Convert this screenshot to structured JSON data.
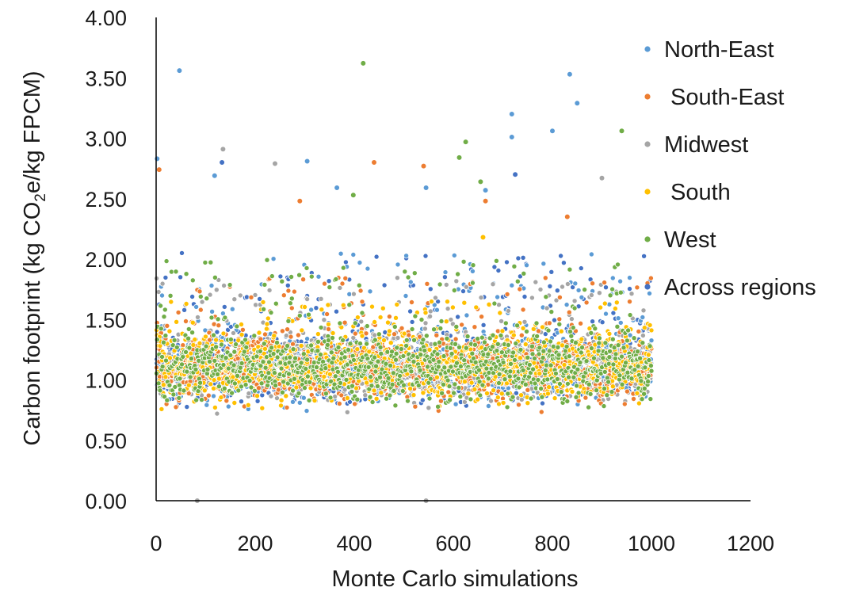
{
  "chart_data": {
    "type": "scatter",
    "xlabel": "Monte Carlo simulations",
    "ylabel_parts": [
      "Carbon footprint (kg CO",
      "2",
      "e/kg FPCM)"
    ],
    "xlim": [
      0,
      1200
    ],
    "ylim": [
      0,
      4
    ],
    "x_ticks": [
      "0",
      "200",
      "400",
      "600",
      "800",
      "1000",
      "1200"
    ],
    "y_ticks": [
      "0.00",
      "0.50",
      "1.00",
      "1.50",
      "2.00",
      "2.50",
      "3.00",
      "3.50",
      "4.00"
    ],
    "grid": false,
    "legend_position": "right",
    "n_simulations": 1000,
    "series": [
      {
        "name": "North-East",
        "color": "#5b9bd5",
        "main_range": [
          0.7,
          2.05
        ],
        "outliers": [
          [
            2,
            2.83
          ],
          [
            47,
            3.56
          ],
          [
            118,
            2.69
          ],
          [
            305,
            2.81
          ],
          [
            365,
            2.59
          ],
          [
            545,
            2.59
          ],
          [
            718,
            3.2
          ],
          [
            835,
            3.53
          ],
          [
            850,
            3.29
          ],
          [
            800,
            3.06
          ],
          [
            718,
            3.01
          ],
          [
            665,
            2.57
          ]
        ]
      },
      {
        "name": "South-East",
        "color": "#ed7d31",
        "main_range": [
          0.7,
          1.85
        ],
        "outliers": [
          [
            6,
            2.74
          ],
          [
            440,
            2.8
          ],
          [
            540,
            2.77
          ],
          [
            665,
            2.48
          ],
          [
            830,
            2.35
          ],
          [
            290,
            2.48
          ]
        ]
      },
      {
        "name": "Midwest",
        "color": "#a5a5a5",
        "main_range": [
          0.55,
          1.85
        ],
        "outliers": [
          [
            135,
            2.91
          ],
          [
            240,
            2.79
          ],
          [
            900,
            2.67
          ],
          [
            83,
            0.0
          ],
          [
            545,
            0.0
          ]
        ]
      },
      {
        "name": "South",
        "color": "#ffc000",
        "main_range": [
          0.7,
          1.65
        ],
        "outliers": [
          [
            660,
            2.18
          ]
        ]
      },
      {
        "name": "West",
        "color": "#70ad47",
        "main_range": [
          0.6,
          2.0
        ],
        "outliers": [
          [
            418,
            3.62
          ],
          [
            612,
            2.84
          ],
          [
            625,
            2.97
          ],
          [
            940,
            3.06
          ],
          [
            398,
            2.53
          ],
          [
            655,
            2.64
          ]
        ]
      },
      {
        "name": "Across regions",
        "color": "#4472c4",
        "main_range": [
          0.65,
          2.05
        ],
        "outliers": [
          [
            133,
            2.8
          ],
          [
            725,
            2.7
          ]
        ]
      }
    ]
  }
}
